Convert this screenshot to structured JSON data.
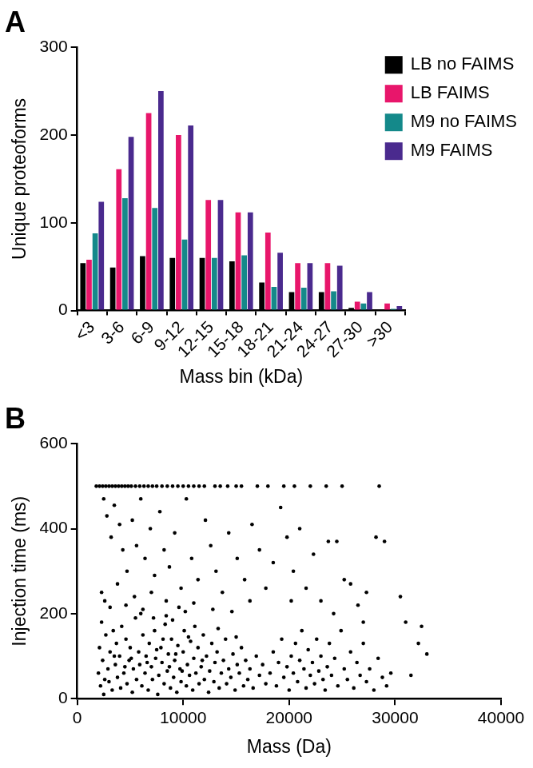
{
  "chart_data": [
    {
      "type": "bar",
      "title": "A",
      "x_label": "Mass bin (kDa)",
      "y_label": "Unique proteoforms",
      "categories": [
        "<3",
        "3-6",
        "6-9",
        "9-12",
        "12-15",
        "15-18",
        "18-21",
        "21-24",
        "24-27",
        "27-30",
        ">30"
      ],
      "series": [
        {
          "name": "LB no FAIMS",
          "color": "#000000",
          "values": [
            54,
            49,
            62,
            60,
            60,
            56,
            32,
            21,
            21,
            3,
            1
          ]
        },
        {
          "name": "LB FAIMS",
          "color": "#e8166b",
          "values": [
            58,
            161,
            225,
            200,
            126,
            112,
            89,
            54,
            54,
            10,
            8
          ]
        },
        {
          "name": "M9 no FAIMS",
          "color": "#14898a",
          "values": [
            88,
            128,
            117,
            81,
            60,
            63,
            27,
            26,
            22,
            8,
            2
          ]
        },
        {
          "name": "M9 FAIMS",
          "color": "#4a2a8e",
          "values": [
            124,
            198,
            250,
            211,
            126,
            112,
            66,
            54,
            51,
            21,
            5
          ]
        }
      ],
      "ylim": [
        0,
        300
      ],
      "yticks": [
        0,
        100,
        200,
        300
      ],
      "grid": false,
      "legend": "top-right"
    },
    {
      "type": "scatter",
      "title": "B",
      "x_label": "Mass (Da)",
      "y_label": "Injection time (ms)",
      "color": "#000000",
      "marker": "circle",
      "x": [
        1800,
        2100,
        2400,
        2700,
        3000,
        3300,
        3600,
        3900,
        4200,
        4500,
        4800,
        5100,
        5500,
        5900,
        6300,
        6700,
        7100,
        7500,
        8000,
        8500,
        9000,
        9500,
        10000,
        10500,
        11000,
        11500,
        12000,
        13000,
        13500,
        14200,
        15000,
        15500,
        17000,
        18000,
        19500,
        20500,
        22000,
        23500,
        25000,
        28500,
        2500,
        2800,
        3200,
        3500,
        4000,
        4300,
        4700,
        5200,
        5600,
        6000,
        6400,
        6900,
        7300,
        7800,
        8200,
        8700,
        9200,
        9800,
        10300,
        10800,
        11400,
        12100,
        12600,
        13100,
        13700,
        14300,
        15100,
        15800,
        16500,
        17200,
        17800,
        18500,
        19200,
        19800,
        20400,
        21000,
        21600,
        22300,
        23000,
        23700,
        24500,
        25200,
        25800,
        26500,
        27300,
        28200,
        29000,
        30500,
        31000,
        32500,
        33000,
        32200,
        2300,
        2600,
        3100,
        3800,
        4600,
        5400,
        6200,
        7000,
        8400,
        9600,
        11000,
        12800,
        14600,
        16300,
        20200,
        24200,
        27000,
        31500,
        2000,
        2100,
        2200,
        2300,
        2400,
        2500,
        2700,
        2900,
        3000,
        3100,
        3300,
        3400,
        3600,
        3700,
        3800,
        4000,
        4100,
        4200,
        4400,
        4600,
        4700,
        4900,
        5000,
        5200,
        5300,
        5500,
        5600,
        5800,
        5900,
        6100,
        6200,
        6400,
        6500,
        6700,
        6800,
        7000,
        7100,
        7300,
        7400,
        7600,
        7700,
        7900,
        8000,
        8200,
        8300,
        8500,
        8600,
        8800,
        8900,
        9100,
        9200,
        9400,
        9500,
        9700,
        9800,
        10000,
        10100,
        10300,
        10400,
        10600,
        10700,
        10900,
        11000,
        11200,
        11400,
        11500,
        11700,
        11900,
        12000,
        12200,
        12400,
        12500,
        12700,
        12900,
        13000,
        13200,
        13400,
        13600,
        13800,
        14000,
        14100,
        14300,
        14500,
        14700,
        14900,
        15100,
        15300,
        15500,
        15700,
        15900,
        16100,
        16300,
        16600,
        16900,
        17200,
        17500,
        17800,
        18200,
        18500,
        18800,
        19000,
        19300,
        19500,
        19800,
        20000,
        20200,
        20400,
        20600,
        20800,
        21000,
        21200,
        21400,
        21600,
        21800,
        22000,
        22200,
        22400,
        22600,
        22800,
        23000,
        23200,
        23400,
        23600,
        23800,
        24000,
        24300,
        24600,
        24900,
        25200,
        25500,
        25800,
        26100,
        26400,
        26700,
        27000,
        27300,
        27600,
        28000,
        28400,
        28800,
        29200,
        29600,
        5100,
        6600,
        7500,
        8100,
        8700,
        9300,
        9900,
        10500,
        11100,
        11800,
        6000,
        7200,
        8400,
        9000,
        10200,
        3500,
        4500,
        13300,
        15000,
        2600
      ],
      "values": [
        500,
        500,
        500,
        500,
        500,
        500,
        500,
        500,
        500,
        500,
        500,
        500,
        500,
        500,
        500,
        500,
        500,
        500,
        500,
        500,
        500,
        500,
        500,
        500,
        500,
        500,
        500,
        500,
        500,
        500,
        500,
        500,
        500,
        500,
        500,
        500,
        500,
        500,
        500,
        500,
        470,
        430,
        380,
        455,
        410,
        350,
        300,
        420,
        360,
        470,
        330,
        400,
        290,
        440,
        350,
        310,
        390,
        260,
        470,
        330,
        280,
        420,
        360,
        300,
        250,
        390,
        330,
        280,
        410,
        350,
        260,
        320,
        450,
        380,
        300,
        400,
        260,
        340,
        230,
        370,
        370,
        280,
        270,
        220,
        250,
        380,
        370,
        240,
        180,
        170,
        105,
        130,
        250,
        230,
        215,
        270,
        220,
        240,
        210,
        250,
        230,
        215,
        225,
        210,
        205,
        230,
        230,
        200,
        180,
        55,
        60,
        120,
        30,
        180,
        90,
        10,
        150,
        70,
        40,
        110,
        20,
        160,
        80,
        130,
        50,
        100,
        25,
        170,
        60,
        140,
        35,
        90,
        120,
        15,
        70,
        190,
        45,
        110,
        80,
        30,
        150,
        60,
        100,
        20,
        130,
        75,
        45,
        160,
        95,
        10,
        55,
        120,
        85,
        35,
        175,
        65,
        105,
        25,
        140,
        50,
        90,
        15,
        125,
        70,
        40,
        110,
        160,
        30,
        80,
        55,
        135,
        20,
        95,
        60,
        120,
        35,
        75,
        150,
        45,
        100,
        15,
        65,
        130,
        40,
        85,
        110,
        25,
        60,
        90,
        140,
        35,
        70,
        50,
        105,
        20,
        80,
        60,
        120,
        30,
        90,
        45,
        70,
        25,
        100,
        55,
        80,
        35,
        60,
        110,
        30,
        85,
        140,
        50,
        75,
        20,
        100,
        60,
        130,
        40,
        90,
        160,
        70,
        25,
        115,
        55,
        85,
        35,
        140,
        65,
        100,
        45,
        20,
        75,
        130,
        55,
        95,
        30,
        160,
        70,
        45,
        110,
        25,
        85,
        55,
        130,
        40,
        70,
        20,
        95,
        50,
        30,
        60,
        95,
        85,
        115,
        140,
        75,
        105,
        65,
        145,
        170,
        90,
        200,
        190,
        195,
        185,
        205,
        100,
        75,
        165,
        145,
        45
      ],
      "xlim": [
        0,
        40000
      ],
      "xticks": [
        0,
        10000,
        20000,
        30000,
        40000
      ],
      "ylim": [
        0,
        600
      ],
      "yticks": [
        0,
        200,
        400,
        600
      ],
      "grid": false
    }
  ]
}
